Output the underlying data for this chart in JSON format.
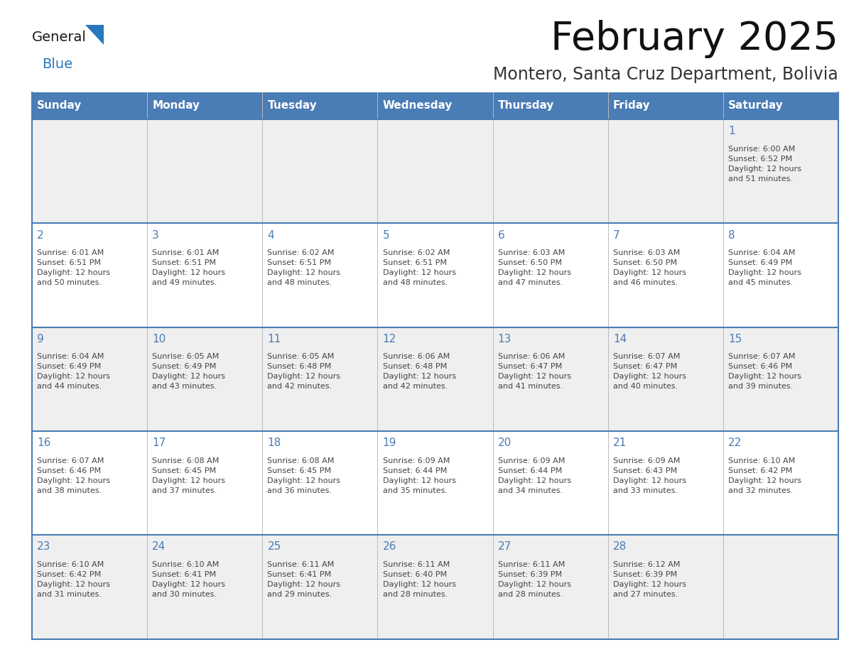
{
  "title": "February 2025",
  "subtitle": "Montero, Santa Cruz Department, Bolivia",
  "days_of_week": [
    "Sunday",
    "Monday",
    "Tuesday",
    "Wednesday",
    "Thursday",
    "Friday",
    "Saturday"
  ],
  "header_bg": "#4a7cb5",
  "header_text": "#ffffff",
  "cell_bg_odd": "#efefef",
  "cell_bg_even": "#ffffff",
  "border_color": "#4a7cb5",
  "day_num_color": "#4a7cb5",
  "text_color": "#444444",
  "logo_general_color": "#1a1a1a",
  "logo_blue_color": "#2878be",
  "logo_triangle_color": "#2878be",
  "weeks": [
    [
      {
        "day": null,
        "sunrise": null,
        "sunset": null,
        "daylight": null
      },
      {
        "day": null,
        "sunrise": null,
        "sunset": null,
        "daylight": null
      },
      {
        "day": null,
        "sunrise": null,
        "sunset": null,
        "daylight": null
      },
      {
        "day": null,
        "sunrise": null,
        "sunset": null,
        "daylight": null
      },
      {
        "day": null,
        "sunrise": null,
        "sunset": null,
        "daylight": null
      },
      {
        "day": null,
        "sunrise": null,
        "sunset": null,
        "daylight": null
      },
      {
        "day": 1,
        "sunrise": "6:00 AM",
        "sunset": "6:52 PM",
        "daylight": "12 hours\nand 51 minutes."
      }
    ],
    [
      {
        "day": 2,
        "sunrise": "6:01 AM",
        "sunset": "6:51 PM",
        "daylight": "12 hours\nand 50 minutes."
      },
      {
        "day": 3,
        "sunrise": "6:01 AM",
        "sunset": "6:51 PM",
        "daylight": "12 hours\nand 49 minutes."
      },
      {
        "day": 4,
        "sunrise": "6:02 AM",
        "sunset": "6:51 PM",
        "daylight": "12 hours\nand 48 minutes."
      },
      {
        "day": 5,
        "sunrise": "6:02 AM",
        "sunset": "6:51 PM",
        "daylight": "12 hours\nand 48 minutes."
      },
      {
        "day": 6,
        "sunrise": "6:03 AM",
        "sunset": "6:50 PM",
        "daylight": "12 hours\nand 47 minutes."
      },
      {
        "day": 7,
        "sunrise": "6:03 AM",
        "sunset": "6:50 PM",
        "daylight": "12 hours\nand 46 minutes."
      },
      {
        "day": 8,
        "sunrise": "6:04 AM",
        "sunset": "6:49 PM",
        "daylight": "12 hours\nand 45 minutes."
      }
    ],
    [
      {
        "day": 9,
        "sunrise": "6:04 AM",
        "sunset": "6:49 PM",
        "daylight": "12 hours\nand 44 minutes."
      },
      {
        "day": 10,
        "sunrise": "6:05 AM",
        "sunset": "6:49 PM",
        "daylight": "12 hours\nand 43 minutes."
      },
      {
        "day": 11,
        "sunrise": "6:05 AM",
        "sunset": "6:48 PM",
        "daylight": "12 hours\nand 42 minutes."
      },
      {
        "day": 12,
        "sunrise": "6:06 AM",
        "sunset": "6:48 PM",
        "daylight": "12 hours\nand 42 minutes."
      },
      {
        "day": 13,
        "sunrise": "6:06 AM",
        "sunset": "6:47 PM",
        "daylight": "12 hours\nand 41 minutes."
      },
      {
        "day": 14,
        "sunrise": "6:07 AM",
        "sunset": "6:47 PM",
        "daylight": "12 hours\nand 40 minutes."
      },
      {
        "day": 15,
        "sunrise": "6:07 AM",
        "sunset": "6:46 PM",
        "daylight": "12 hours\nand 39 minutes."
      }
    ],
    [
      {
        "day": 16,
        "sunrise": "6:07 AM",
        "sunset": "6:46 PM",
        "daylight": "12 hours\nand 38 minutes."
      },
      {
        "day": 17,
        "sunrise": "6:08 AM",
        "sunset": "6:45 PM",
        "daylight": "12 hours\nand 37 minutes."
      },
      {
        "day": 18,
        "sunrise": "6:08 AM",
        "sunset": "6:45 PM",
        "daylight": "12 hours\nand 36 minutes."
      },
      {
        "day": 19,
        "sunrise": "6:09 AM",
        "sunset": "6:44 PM",
        "daylight": "12 hours\nand 35 minutes."
      },
      {
        "day": 20,
        "sunrise": "6:09 AM",
        "sunset": "6:44 PM",
        "daylight": "12 hours\nand 34 minutes."
      },
      {
        "day": 21,
        "sunrise": "6:09 AM",
        "sunset": "6:43 PM",
        "daylight": "12 hours\nand 33 minutes."
      },
      {
        "day": 22,
        "sunrise": "6:10 AM",
        "sunset": "6:42 PM",
        "daylight": "12 hours\nand 32 minutes."
      }
    ],
    [
      {
        "day": 23,
        "sunrise": "6:10 AM",
        "sunset": "6:42 PM",
        "daylight": "12 hours\nand 31 minutes."
      },
      {
        "day": 24,
        "sunrise": "6:10 AM",
        "sunset": "6:41 PM",
        "daylight": "12 hours\nand 30 minutes."
      },
      {
        "day": 25,
        "sunrise": "6:11 AM",
        "sunset": "6:41 PM",
        "daylight": "12 hours\nand 29 minutes."
      },
      {
        "day": 26,
        "sunrise": "6:11 AM",
        "sunset": "6:40 PM",
        "daylight": "12 hours\nand 28 minutes."
      },
      {
        "day": 27,
        "sunrise": "6:11 AM",
        "sunset": "6:39 PM",
        "daylight": "12 hours\nand 28 minutes."
      },
      {
        "day": 28,
        "sunrise": "6:12 AM",
        "sunset": "6:39 PM",
        "daylight": "12 hours\nand 27 minutes."
      },
      {
        "day": null,
        "sunrise": null,
        "sunset": null,
        "daylight": null
      }
    ]
  ],
  "figsize": [
    11.88,
    9.18
  ],
  "dpi": 100
}
